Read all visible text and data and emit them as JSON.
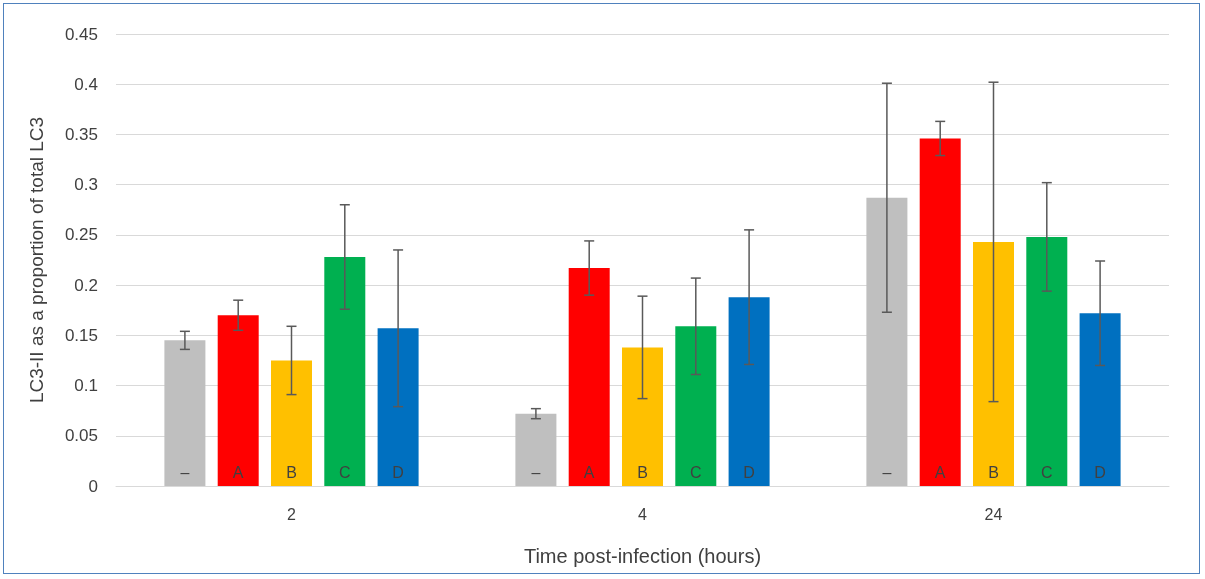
{
  "chart_data": {
    "type": "bar",
    "xlabel": "Time post-infection (hours)",
    "ylabel": "LC3-II as a proportion of total LC3",
    "categories": [
      "2",
      "4",
      "24"
    ],
    "series": [
      {
        "name": "–",
        "color": "#bfbfbf",
        "values": [
          0.145,
          0.072,
          0.287
        ],
        "errors": [
          0.009,
          0.005,
          0.114
        ]
      },
      {
        "name": "A",
        "color": "#ff0000",
        "values": [
          0.17,
          0.217,
          0.346
        ],
        "errors": [
          0.015,
          0.027,
          0.017
        ]
      },
      {
        "name": "B",
        "color": "#ffc000",
        "values": [
          0.125,
          0.138,
          0.243
        ],
        "errors": [
          0.034,
          0.051,
          0.159
        ]
      },
      {
        "name": "C",
        "color": "#00b050",
        "values": [
          0.228,
          0.159,
          0.248
        ],
        "errors": [
          0.052,
          0.048,
          0.054
        ]
      },
      {
        "name": "D",
        "color": "#0070c0",
        "values": [
          0.157,
          0.188,
          0.172
        ],
        "errors": [
          0.078,
          0.067,
          0.052
        ]
      }
    ],
    "ylim": [
      0,
      0.45
    ],
    "yticks": [
      0,
      0.05,
      0.1,
      0.15,
      0.2,
      0.25,
      0.3,
      0.35,
      0.4,
      0.45
    ],
    "grid": "y",
    "legend": false
  }
}
